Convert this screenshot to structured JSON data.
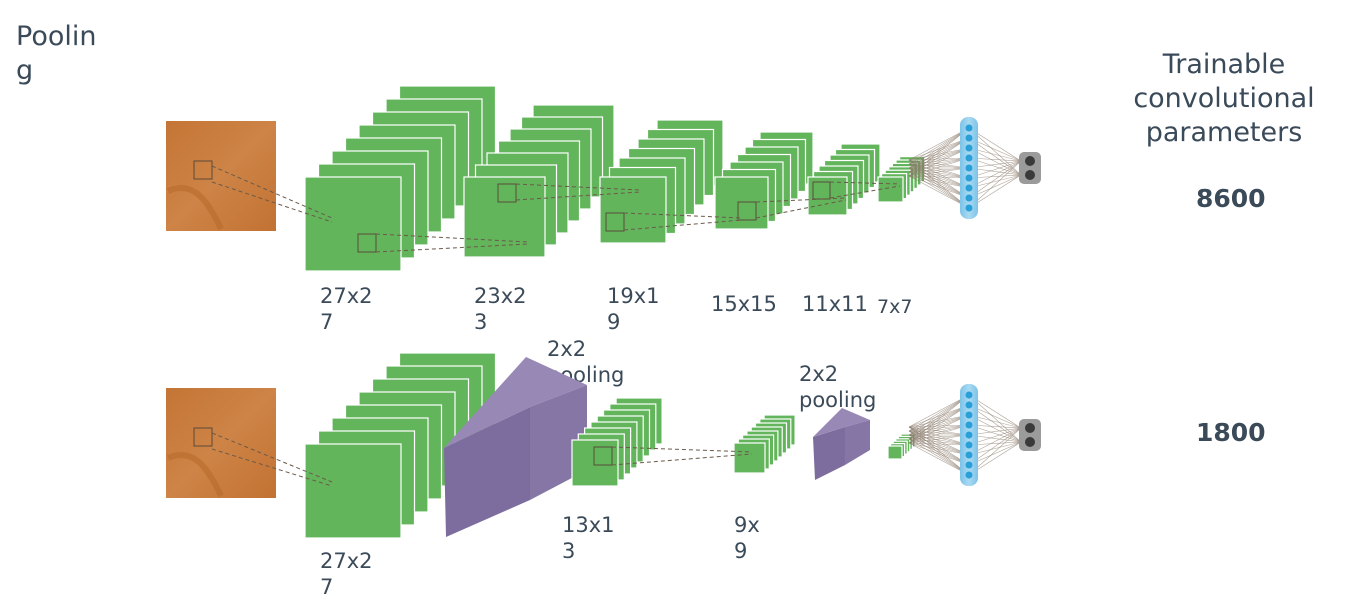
{
  "title": "Poolin\ng",
  "column_header": "Trainable\nconvolutional\nparameters",
  "rows": [
    {
      "params": "8600",
      "dims": [
        "27x2\n7",
        "23x2\n3",
        "19x1\n9",
        "15x15",
        "11x11",
        "7x7"
      ]
    },
    {
      "params": "1800",
      "dims": [
        "27x2\n7",
        "13x1\n3",
        "9x\n9"
      ],
      "pool_labels": [
        "2x2\npooling",
        "2x2\npooling"
      ]
    }
  ],
  "colors": {
    "feature_map": "#63b55c",
    "feature_map_edge": "#4f9a49",
    "pool": "#8878a8",
    "input": "#c8793b",
    "fc_node": "#2a9fd8",
    "fc_bar": "#86c8ea",
    "output": "#9b9b9b"
  }
}
